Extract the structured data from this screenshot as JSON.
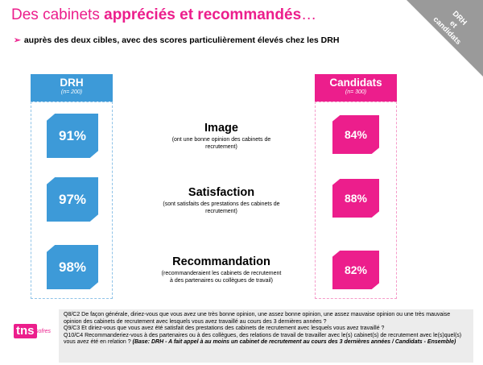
{
  "header": {
    "title_part1": "Des cabinets ",
    "title_part2": "appréciés et recommandés",
    "title_part3": "…",
    "subtitle": "auprès des deux cibles, avec des scores particulièrement élevés chez les DRH",
    "corner_line1": "DRH",
    "corner_line2": "et",
    "corner_line3": "candidats"
  },
  "colors": {
    "drh": "#3d9ad8",
    "candidats": "#ec1e8c",
    "accent": "#ec1e8c"
  },
  "chart_data": {
    "type": "table",
    "columns": [
      {
        "name": "DRH",
        "base": "(n= 200)"
      },
      {
        "name": "Candidats",
        "base": "(n= 300)"
      }
    ],
    "rows": [
      {
        "metric": "Image",
        "description": "(ont une bonne opinion des cabinets de recrutement)",
        "drh": "91%",
        "candidats": "84%"
      },
      {
        "metric": "Satisfaction",
        "description": "(sont satisfaits des prestations des cabinets de recrutement)",
        "drh": "97%",
        "candidats": "88%"
      },
      {
        "metric": "Recommandation",
        "description": "(recommanderaient les cabinets de recrutement à des partenaires ou collègues de travail)",
        "drh": "98%",
        "candidats": "82%"
      }
    ],
    "values_drh": [
      91,
      97,
      98
    ],
    "values_candidats": [
      84,
      88,
      82
    ]
  },
  "footer": {
    "q1": "Q8/C2 De façon générale, diriez-vous que vous avez une très bonne opinion, une assez bonne opinion, une assez mauvaise opinion ou une très mauvaise opinion des cabinets de recrutement avec lesquels vous avez travaillé au cours des 3 dernières années ?",
    "q2": "Q9/C3 Et diriez-vous que vous avez été satisfait des prestations des cabinets de recrutement avec lesquels vous avez travaillé ?",
    "q3": "Q10/C4 Recommanderiez-vous à des partenaires ou à des collègues, des relations de travail de travailler avec le(s) cabinet(s) de recrutement avec le(s)quel(s) vous avez été en relation ?",
    "base": "(Base: DRH - A fait appel à au moins un cabinet de recrutement au cours des 3 dernières années / Candidats - Ensemble)"
  },
  "logo": {
    "tns": "tns",
    "sofres": "sofres"
  }
}
